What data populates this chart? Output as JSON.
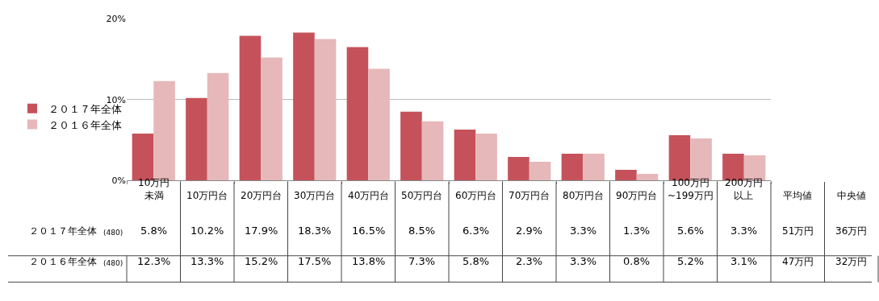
{
  "chart_data": {
    "type": "bar",
    "categories": [
      "10万円未満",
      "10万円台",
      "20万円台",
      "30万円台",
      "40万円台",
      "50万円台",
      "60万円台",
      "70万円台",
      "80万円台",
      "90万円台",
      "100万円~199万円",
      "200万円以上"
    ],
    "series": [
      {
        "name": "２０１７年全体",
        "color": "#c5525a",
        "values": [
          5.8,
          10.2,
          17.9,
          18.3,
          16.5,
          8.5,
          6.3,
          2.9,
          3.3,
          1.3,
          5.6,
          3.3
        ],
        "value_labels": [
          "5.8%",
          "10.2%",
          "17.9%",
          "18.3%",
          "16.5%",
          "8.5%",
          "6.3%",
          "2.9%",
          "3.3%",
          "1.3%",
          "5.6%",
          "3.3%"
        ]
      },
      {
        "name": "２０１６年全体",
        "color": "#e6b8b9",
        "values": [
          12.3,
          13.3,
          15.2,
          17.5,
          13.8,
          7.3,
          5.8,
          2.3,
          3.3,
          0.8,
          5.2,
          3.1
        ],
        "value_labels": [
          "12.3%",
          "13.3%",
          "15.2%",
          "17.5%",
          "13.8%",
          "7.3%",
          "5.8%",
          "2.3%",
          "3.3%",
          "0.8%",
          "5.2%",
          "3.1%"
        ]
      }
    ],
    "annotations": [
      "(480)",
      "(480)",
      "平均値",
      "中央値",
      "51万円",
      "36万円",
      "47万円",
      "32万円"
    ],
    "ylim": [
      0,
      20
    ],
    "yticks": [
      {
        "value": 0,
        "label": "0%"
      },
      {
        "value": 10,
        "label": "10%"
      },
      {
        "value": 20,
        "label": "20%"
      }
    ],
    "grid": "y",
    "legend": "left"
  }
}
